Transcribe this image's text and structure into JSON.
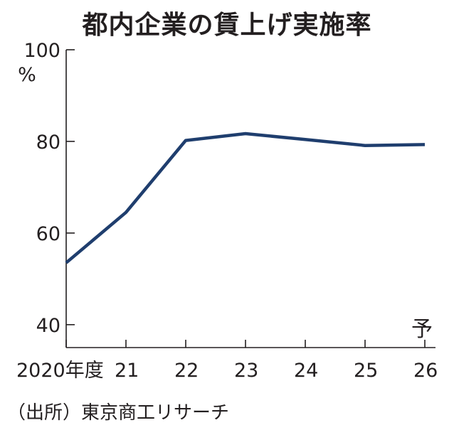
{
  "title": "都内企業の賃上げ実施率",
  "source": "（出所）東京商工リサーチ",
  "chart_data": {
    "type": "line",
    "title": "都内企業の賃上げ実施率",
    "xlabel": "",
    "ylabel": "",
    "y_unit": "%",
    "x": [
      "2020年度",
      "21",
      "22",
      "23",
      "24",
      "25",
      "26"
    ],
    "series": [
      {
        "values": [
          53.5,
          64.5,
          80.2,
          81.7,
          80.4,
          79.1,
          79.3
        ]
      }
    ],
    "ylim": [
      35,
      100
    ],
    "y_ticks": [
      100,
      80,
      60,
      40
    ],
    "y_tick_labels": [
      "100",
      "80",
      "60",
      "40"
    ],
    "forecast_label": "予",
    "forecast_index": 6,
    "grid": false,
    "line_color": "#1f3e6e",
    "axis_color": "#231f20"
  }
}
